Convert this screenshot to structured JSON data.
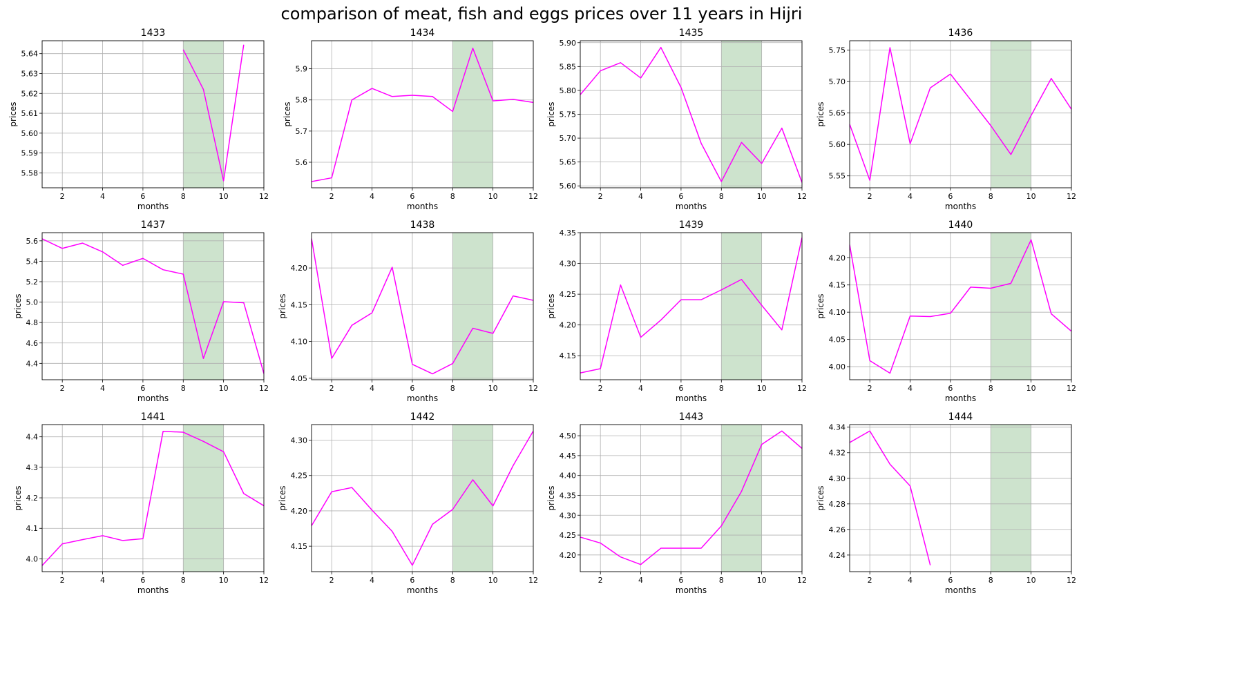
{
  "title": "comparison of meat, fish and eggs prices over 11 years in Hijri",
  "colors": {
    "line": "#ff00ff",
    "highlight": "#2e8b2e",
    "grid": "#b0b0b0"
  },
  "chart_data": [
    {
      "type": "line",
      "title": "1433",
      "xlabel": "months",
      "ylabel": "prices",
      "xlim": [
        1,
        12
      ],
      "ylim": [
        5.5725,
        5.6465
      ],
      "xticks": [
        2,
        4,
        6,
        8,
        10,
        12
      ],
      "yticks": [
        5.58,
        5.59,
        5.6,
        5.61,
        5.62,
        5.63,
        5.64
      ],
      "ytick_labels": [
        "5.58",
        "5.59",
        "5.60",
        "5.61",
        "5.62",
        "5.63",
        "5.64"
      ],
      "grid": true,
      "shaded_x": [
        8,
        10
      ],
      "series": [
        {
          "x": [
            8,
            9,
            10,
            11
          ],
          "y": [
            5.642,
            5.622,
            5.576,
            5.6445
          ]
        }
      ]
    },
    {
      "type": "line",
      "title": "1434",
      "xlabel": "months",
      "ylabel": "prices",
      "xlim": [
        1,
        12
      ],
      "ylim": [
        5.518,
        5.99
      ],
      "xticks": [
        2,
        4,
        6,
        8,
        10,
        12
      ],
      "yticks": [
        5.6,
        5.7,
        5.8,
        5.9
      ],
      "ytick_labels": [
        "5.6",
        "5.7",
        "5.8",
        "5.9"
      ],
      "grid": true,
      "shaded_x": [
        8,
        10
      ],
      "series": [
        {
          "x": [
            1,
            2,
            3,
            4,
            5,
            6,
            7,
            8,
            9,
            10,
            11,
            12
          ],
          "y": [
            5.538,
            5.55,
            5.8,
            5.837,
            5.811,
            5.815,
            5.811,
            5.763,
            5.966,
            5.797,
            5.802,
            5.792
          ]
        }
      ]
    },
    {
      "type": "line",
      "title": "1435",
      "xlabel": "months",
      "ylabel": "prices",
      "xlim": [
        1,
        12
      ],
      "ylim": [
        5.596,
        5.904
      ],
      "xticks": [
        2,
        4,
        6,
        8,
        10,
        12
      ],
      "yticks": [
        5.6,
        5.65,
        5.7,
        5.75,
        5.8,
        5.85,
        5.9
      ],
      "ytick_labels": [
        "5.60",
        "5.65",
        "5.70",
        "5.75",
        "5.80",
        "5.85",
        "5.90"
      ],
      "grid": true,
      "shaded_x": [
        8,
        10
      ],
      "series": [
        {
          "x": [
            1,
            2,
            3,
            4,
            5,
            6,
            7,
            8,
            9,
            10,
            11,
            12
          ],
          "y": [
            5.791,
            5.841,
            5.858,
            5.826,
            5.89,
            5.806,
            5.689,
            5.609,
            5.691,
            5.647,
            5.721,
            5.607
          ]
        }
      ]
    },
    {
      "type": "line",
      "title": "1436",
      "xlabel": "months",
      "ylabel": "prices",
      "xlim": [
        1,
        12
      ],
      "ylim": [
        5.531,
        5.765
      ],
      "xticks": [
        2,
        4,
        6,
        8,
        10,
        12
      ],
      "yticks": [
        5.55,
        5.6,
        5.65,
        5.7,
        5.75
      ],
      "ytick_labels": [
        "5.55",
        "5.60",
        "5.65",
        "5.70",
        "5.75"
      ],
      "grid": true,
      "shaded_x": [
        8,
        10
      ],
      "series": [
        {
          "x": [
            1,
            2,
            3,
            4,
            5,
            6,
            8,
            9,
            10,
            11,
            12
          ],
          "y": [
            5.632,
            5.543,
            5.754,
            5.601,
            5.69,
            5.712,
            5.63,
            5.584,
            5.646,
            5.705,
            5.656
          ]
        }
      ]
    },
    {
      "type": "line",
      "title": "1437",
      "xlabel": "months",
      "ylabel": "prices",
      "xlim": [
        1,
        12
      ],
      "ylim": [
        4.24,
        5.68
      ],
      "xticks": [
        2,
        4,
        6,
        8,
        10,
        12
      ],
      "yticks": [
        4.4,
        4.6,
        4.8,
        5.0,
        5.2,
        5.4,
        5.6
      ],
      "ytick_labels": [
        "4.4",
        "4.6",
        "4.8",
        "5.0",
        "5.2",
        "5.4",
        "5.6"
      ],
      "grid": true,
      "shaded_x": [
        8,
        10
      ],
      "series": [
        {
          "x": [
            1,
            2,
            3,
            4,
            5,
            6,
            7,
            8,
            9,
            10,
            11,
            12
          ],
          "y": [
            5.62,
            5.526,
            5.578,
            5.492,
            5.36,
            5.428,
            5.317,
            5.274,
            4.448,
            5.004,
            4.994,
            4.3
          ]
        }
      ]
    },
    {
      "type": "line",
      "title": "1438",
      "xlabel": "months",
      "ylabel": "prices",
      "xlim": [
        1,
        12
      ],
      "ylim": [
        4.048,
        4.248
      ],
      "xticks": [
        2,
        4,
        6,
        8,
        10,
        12
      ],
      "yticks": [
        4.05,
        4.1,
        4.15,
        4.2
      ],
      "ytick_labels": [
        "4.05",
        "4.10",
        "4.15",
        "4.20"
      ],
      "grid": true,
      "shaded_x": [
        8,
        10
      ],
      "series": [
        {
          "x": [
            1,
            2,
            3,
            4,
            5,
            6,
            7,
            8,
            9,
            10,
            11,
            12
          ],
          "y": [
            4.24,
            4.077,
            4.122,
            4.139,
            4.201,
            4.069,
            4.056,
            4.07,
            4.118,
            4.111,
            4.162,
            4.156
          ]
        }
      ]
    },
    {
      "type": "line",
      "title": "1439",
      "xlabel": "months",
      "ylabel": "prices",
      "xlim": [
        1,
        12
      ],
      "ylim": [
        4.111,
        4.35
      ],
      "xticks": [
        2,
        4,
        6,
        8,
        10,
        12
      ],
      "yticks": [
        4.15,
        4.2,
        4.25,
        4.3,
        4.35
      ],
      "ytick_labels": [
        "4.15",
        "4.20",
        "4.25",
        "4.30",
        "4.35"
      ],
      "grid": true,
      "shaded_x": [
        8,
        10
      ],
      "series": [
        {
          "x": [
            1,
            2,
            3,
            4,
            5,
            6,
            7,
            8,
            9,
            10,
            11,
            12
          ],
          "y": [
            4.122,
            4.129,
            4.265,
            4.18,
            4.208,
            4.241,
            4.241,
            4.257,
            4.274,
            4.232,
            4.192,
            4.342
          ]
        }
      ]
    },
    {
      "type": "line",
      "title": "1440",
      "xlabel": "months",
      "ylabel": "prices",
      "xlim": [
        1,
        12
      ],
      "ylim": [
        3.976,
        4.246
      ],
      "xticks": [
        2,
        4,
        6,
        8,
        10,
        12
      ],
      "yticks": [
        4.0,
        4.05,
        4.1,
        4.15,
        4.2
      ],
      "ytick_labels": [
        "4.00",
        "4.05",
        "4.10",
        "4.15",
        "4.20"
      ],
      "grid": true,
      "shaded_x": [
        8,
        10
      ],
      "series": [
        {
          "x": [
            1,
            2,
            3,
            4,
            5,
            6,
            7,
            8,
            9,
            10,
            11,
            12
          ],
          "y": [
            4.224,
            4.011,
            3.988,
            4.093,
            4.092,
            4.098,
            4.146,
            4.144,
            4.153,
            4.233,
            4.097,
            4.065
          ]
        }
      ]
    },
    {
      "type": "line",
      "title": "1441",
      "xlabel": "months",
      "ylabel": "prices",
      "xlim": [
        1,
        12
      ],
      "ylim": [
        3.958,
        4.44
      ],
      "xticks": [
        2,
        4,
        6,
        8,
        10,
        12
      ],
      "yticks": [
        4.0,
        4.1,
        4.2,
        4.3,
        4.4
      ],
      "ytick_labels": [
        "4.0",
        "4.1",
        "4.2",
        "4.3",
        "4.4"
      ],
      "grid": true,
      "shaded_x": [
        8,
        10
      ],
      "series": [
        {
          "x": [
            1,
            2,
            3,
            4,
            5,
            6,
            7,
            8,
            9,
            10,
            11,
            12
          ],
          "y": [
            3.978,
            4.049,
            4.063,
            4.076,
            4.06,
            4.066,
            4.418,
            4.415,
            4.385,
            4.351,
            4.214,
            4.174
          ]
        }
      ]
    },
    {
      "type": "line",
      "title": "1442",
      "xlabel": "months",
      "ylabel": "prices",
      "xlim": [
        1,
        12
      ],
      "ylim": [
        4.114,
        4.322
      ],
      "xticks": [
        2,
        4,
        6,
        8,
        10,
        12
      ],
      "yticks": [
        4.15,
        4.2,
        4.25,
        4.3
      ],
      "ytick_labels": [
        "4.15",
        "4.20",
        "4.25",
        "4.30"
      ],
      "grid": true,
      "shaded_x": [
        8,
        10
      ],
      "series": [
        {
          "x": [
            1,
            2,
            3,
            4,
            5,
            6,
            7,
            8,
            9,
            10,
            11,
            12
          ],
          "y": [
            4.179,
            4.227,
            4.233,
            4.201,
            4.171,
            4.123,
            4.181,
            4.202,
            4.244,
            4.207,
            4.264,
            4.313
          ]
        }
      ]
    },
    {
      "type": "line",
      "title": "1443",
      "xlabel": "months",
      "ylabel": "prices",
      "xlim": [
        1,
        12
      ],
      "ylim": [
        4.158,
        4.528
      ],
      "xticks": [
        2,
        4,
        6,
        8,
        10,
        12
      ],
      "yticks": [
        4.2,
        4.25,
        4.3,
        4.35,
        4.4,
        4.45,
        4.5
      ],
      "ytick_labels": [
        "4.20",
        "4.25",
        "4.30",
        "4.35",
        "4.40",
        "4.45",
        "4.50"
      ],
      "grid": true,
      "shaded_x": [
        8,
        10
      ],
      "series": [
        {
          "x": [
            1,
            2,
            3,
            4,
            5,
            6,
            7,
            8,
            9,
            10,
            11,
            12
          ],
          "y": [
            4.245,
            4.23,
            4.195,
            4.176,
            4.217,
            4.217,
            4.217,
            4.273,
            4.36,
            4.478,
            4.512,
            4.468
          ]
        }
      ]
    },
    {
      "type": "line",
      "title": "1444",
      "xlabel": "months",
      "ylabel": "prices",
      "xlim": [
        1,
        12
      ],
      "ylim": [
        4.227,
        4.342
      ],
      "xticks": [
        2,
        4,
        6,
        8,
        10,
        12
      ],
      "yticks": [
        4.24,
        4.26,
        4.28,
        4.3,
        4.32,
        4.34
      ],
      "ytick_labels": [
        "4.24",
        "4.26",
        "4.28",
        "4.30",
        "4.32",
        "4.34"
      ],
      "grid": true,
      "shaded_x": [
        8,
        10
      ],
      "series": [
        {
          "x": [
            1,
            2,
            3,
            4,
            5
          ],
          "y": [
            4.328,
            4.337,
            4.311,
            4.294,
            4.232
          ]
        }
      ]
    }
  ]
}
